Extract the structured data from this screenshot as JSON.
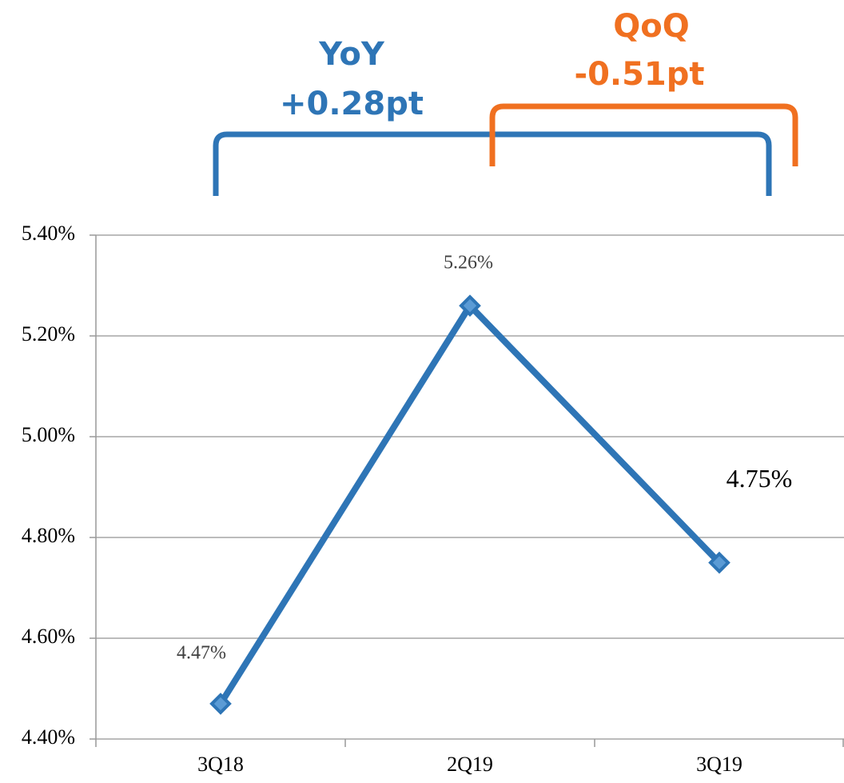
{
  "chart_data": {
    "type": "line",
    "categories": [
      "3Q18",
      "2Q19",
      "3Q19"
    ],
    "values": [
      4.47,
      5.26,
      4.75
    ],
    "value_labels": [
      "4.47%",
      "5.26%",
      "4.75%"
    ],
    "color": "#2e75b6",
    "ylim": [
      4.4,
      5.4
    ],
    "yticks": [
      {
        "value": 4.4,
        "label": "4.40%"
      },
      {
        "value": 4.6,
        "label": "4.60%"
      },
      {
        "value": 4.8,
        "label": "4.80%"
      },
      {
        "value": 5.0,
        "label": "5.00%"
      },
      {
        "value": 5.2,
        "label": "5.20%"
      },
      {
        "value": 5.4,
        "label": "5.40%"
      }
    ],
    "grid": true,
    "annotations": [
      {
        "title": "YoY",
        "text": "+0.28pt",
        "color": "#2e75b6"
      },
      {
        "title": "QoQ",
        "text": "-0.51pt",
        "color": "#f07020"
      }
    ]
  }
}
